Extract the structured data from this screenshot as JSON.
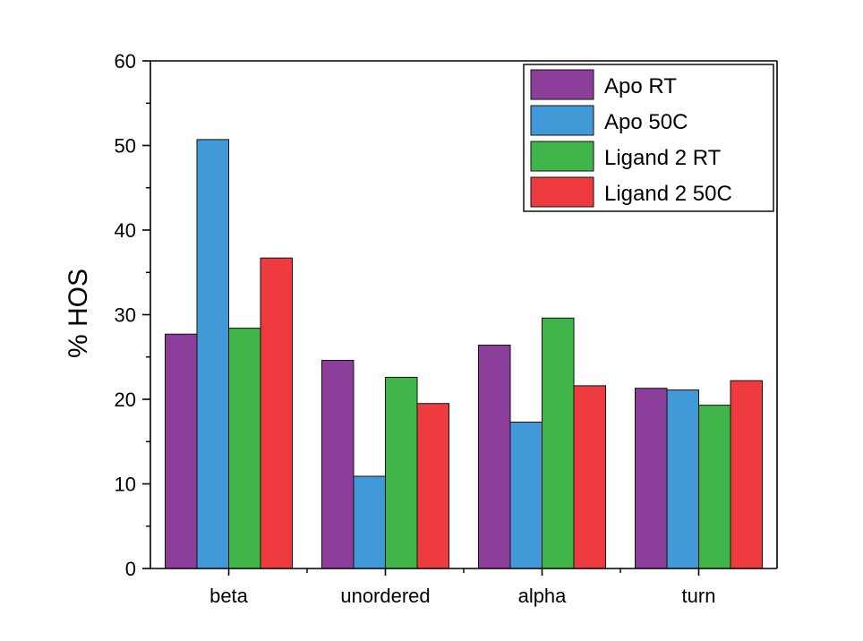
{
  "chart_data": {
    "type": "bar",
    "categories": [
      "beta",
      "unordered",
      "alpha",
      "turn"
    ],
    "series": [
      {
        "name": "Apo RT",
        "color": "#8B3F9B",
        "values": [
          27.7,
          24.6,
          26.4,
          21.3
        ]
      },
      {
        "name": "Apo 50C",
        "color": "#4199D8",
        "values": [
          50.7,
          10.9,
          17.3,
          21.1
        ]
      },
      {
        "name": "Ligand 2 RT",
        "color": "#3FB54A",
        "values": [
          28.4,
          22.6,
          29.6,
          19.3
        ]
      },
      {
        "name": "Ligand 2 50C",
        "color": "#EE3B3F",
        "values": [
          36.7,
          19.5,
          21.6,
          22.2
        ]
      }
    ],
    "xlabel": "",
    "ylabel": "% HOS",
    "ylim": [
      0,
      60
    ],
    "yticks": [
      0,
      10,
      20,
      30,
      40,
      50,
      60
    ],
    "grid": false,
    "legend": "top-right"
  }
}
